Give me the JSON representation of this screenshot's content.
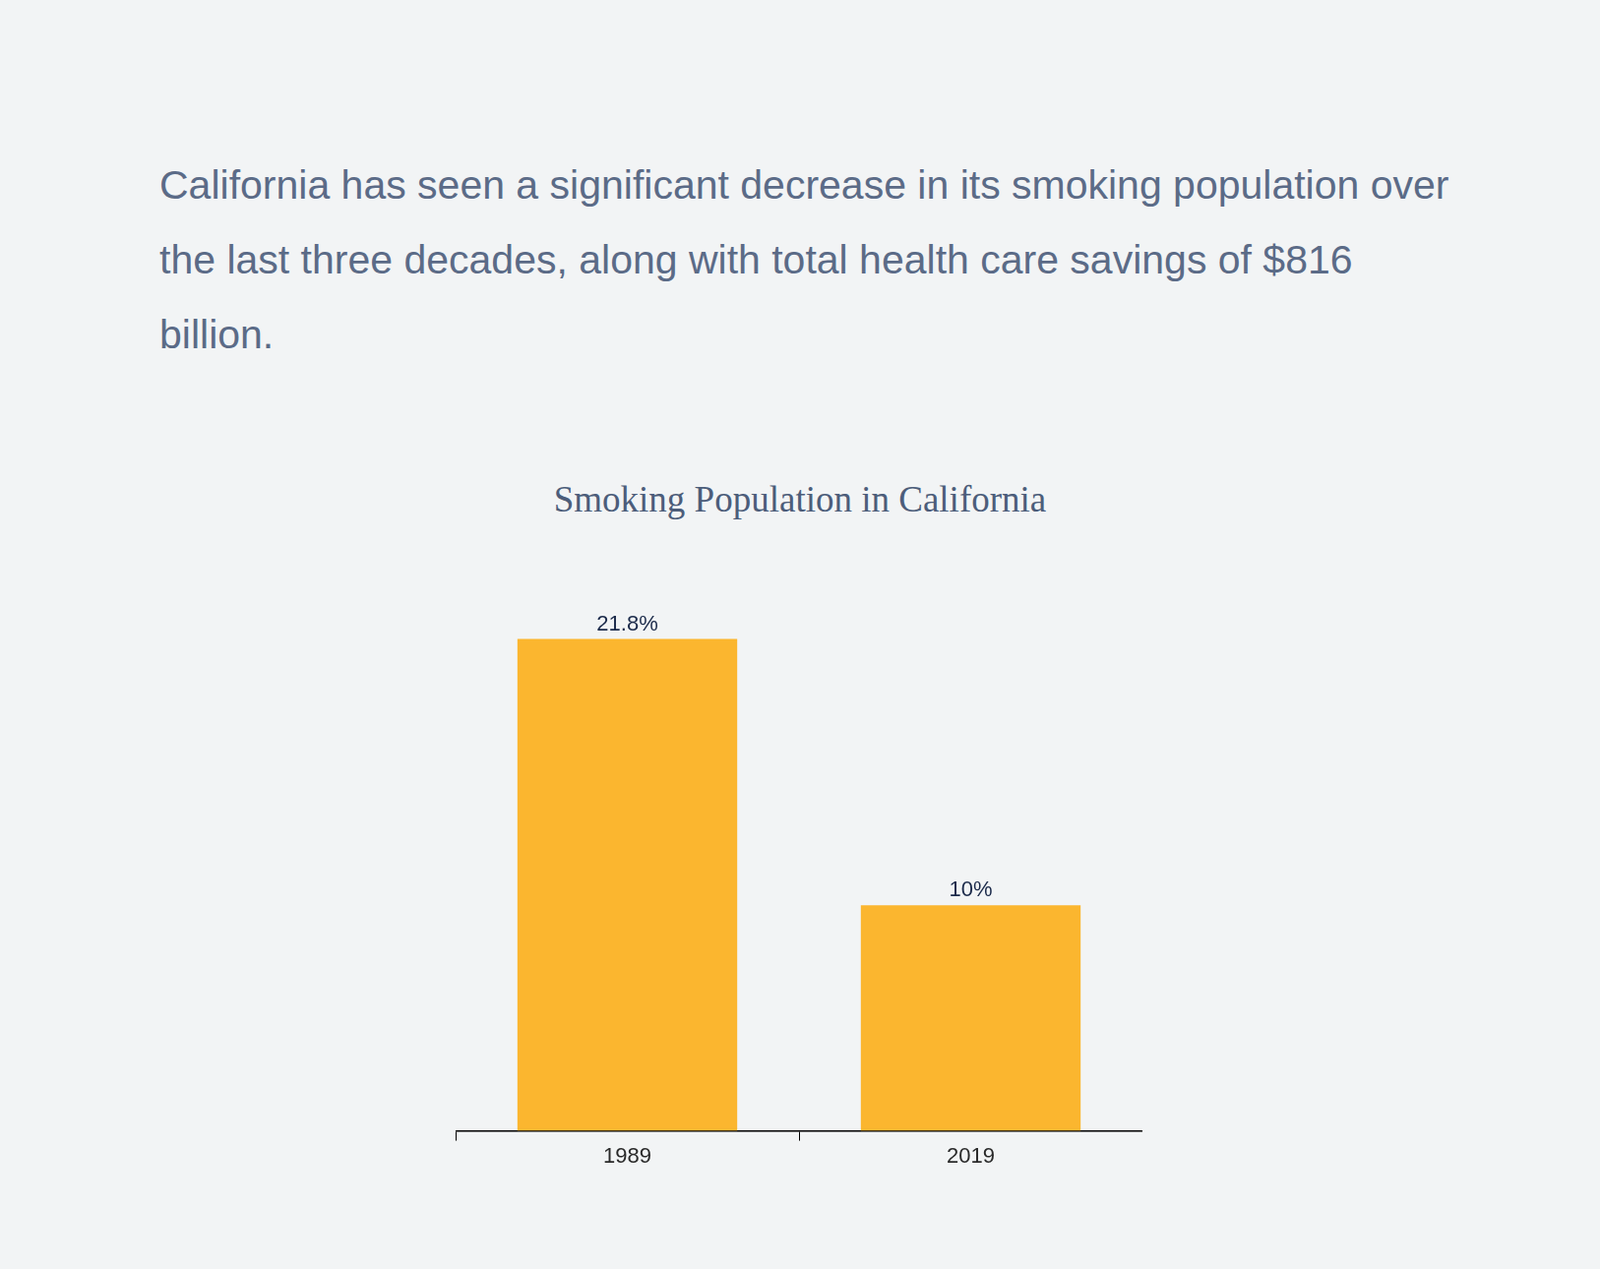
{
  "intro": "California has seen a significant decrease in its smoking population over the last three decades, along with total health care savings of $816 billion.",
  "chart_data": {
    "type": "bar",
    "title": "Smoking Population in California",
    "categories": [
      "1989",
      "2019"
    ],
    "values": [
      21.8,
      10
    ],
    "value_labels": [
      "21.8%",
      "10%"
    ],
    "color": "#fbb62f",
    "ylim": [
      0,
      23
    ],
    "data_labels": true,
    "tick_labels": "x",
    "grid": false
  }
}
